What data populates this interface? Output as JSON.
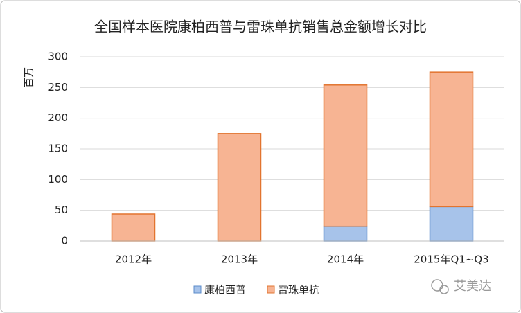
{
  "chart_data": {
    "type": "stacked_bar",
    "title": "全国样本医院康柏西普与雷珠单抗销售总金额增长对比",
    "ylabel": "百万",
    "categories": [
      "2012年",
      "2013年",
      "2014年",
      "2015年Q1~Q3"
    ],
    "series": [
      {
        "name": "康柏西普",
        "color": "#a7c3ea",
        "edgecolor": "#5b8bc9",
        "values": [
          0,
          0,
          24,
          56
        ]
      },
      {
        "name": "雷珠单抗",
        "color": "#f7b493",
        "edgecolor": "#e2742f",
        "values": [
          44,
          175,
          230,
          219
        ]
      }
    ],
    "ylim": [
      0,
      300
    ],
    "yticks": [
      0,
      50,
      100,
      150,
      200,
      250,
      300
    ],
    "grid": true,
    "legend": "bottom",
    "watermark": "艾美达"
  }
}
